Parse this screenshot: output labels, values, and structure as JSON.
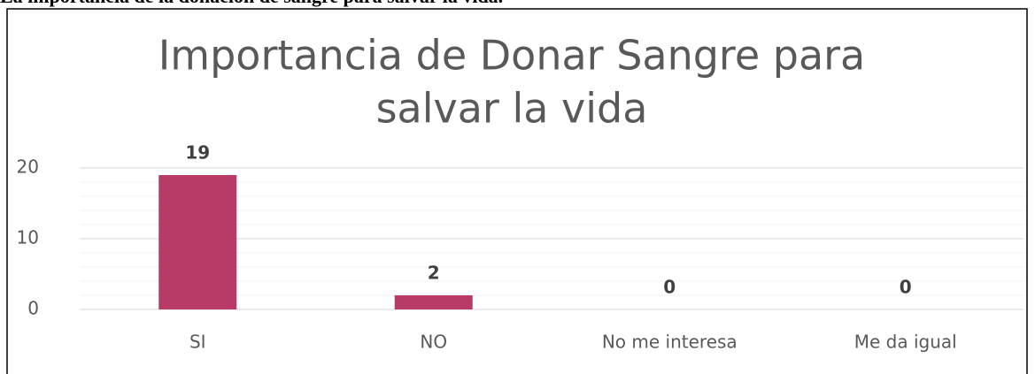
{
  "header": {
    "title": "La importancia de la donación de sangre para salvar la vida."
  },
  "chart_data": {
    "type": "bar",
    "title": [
      "Importancia de Donar Sangre para",
      "salvar la vida"
    ],
    "categories": [
      "SI",
      "NO",
      "No me interesa",
      "Me da igual"
    ],
    "values": [
      19,
      2,
      0,
      0
    ],
    "color": "#b83b67",
    "ylim": [
      0,
      20
    ],
    "yticks": [
      0,
      10,
      20
    ],
    "minor_yticks": [
      2,
      4,
      6,
      8,
      12,
      14,
      16,
      18
    ],
    "grid": true
  }
}
